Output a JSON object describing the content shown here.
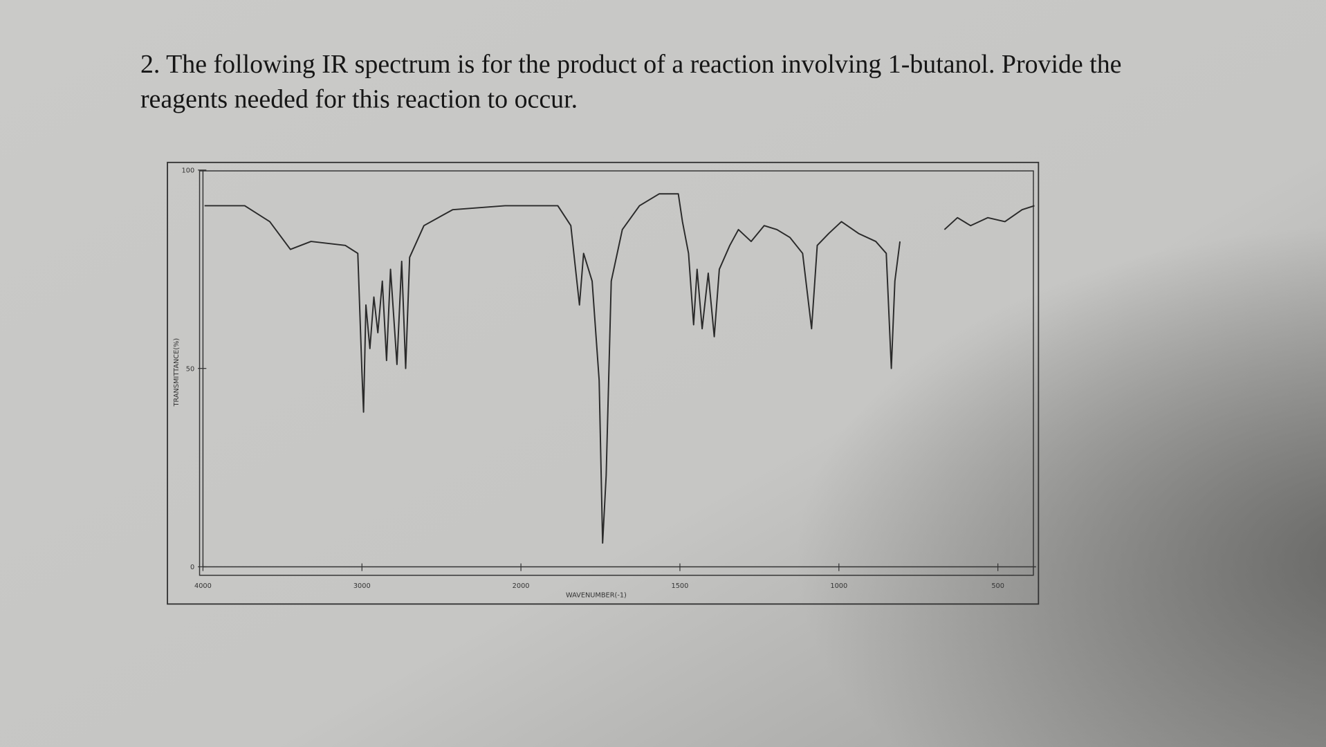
{
  "question": {
    "lines": [
      "2.  The following IR spectrum is for the product of a reaction involving 1-butanol.  Provide the",
      "reagents needed for this reaction to occur."
    ]
  },
  "chart_data": {
    "type": "line",
    "ylabel": "TRANSMITTANCE(%)",
    "xlabel": "WAVENUMBER(-1)",
    "xlim": [
      4000,
      380
    ],
    "xticks": [
      4000,
      3000,
      2000,
      1500,
      1000,
      500
    ],
    "ylim": [
      0,
      100
    ],
    "yticks": [
      100,
      50,
      0
    ],
    "color": "#2a2a2a",
    "x": [
      3990,
      3737,
      3580,
      3450,
      3320,
      3105,
      3026,
      3000,
      2990,
      2975,
      2950,
      2925,
      2900,
      2872,
      2845,
      2820,
      2780,
      2750,
      2725,
      2700,
      2610,
      2430,
      2100,
      1884,
      1843,
      1816,
      1803,
      1776,
      1754,
      1743,
      1732,
      1716,
      1681,
      1627,
      1565,
      1505,
      1492,
      1473,
      1457,
      1446,
      1430,
      1411,
      1392,
      1376,
      1343,
      1316,
      1276,
      1235,
      1195,
      1154,
      1114,
      1086,
      1068,
      1032,
      992,
      938,
      884,
      851,
      835,
      824,
      808,
      740,
      668,
      627,
      586,
      532,
      478,
      424,
      385
    ],
    "values": [
      91,
      91,
      87,
      80,
      82,
      81,
      79,
      49,
      39,
      66,
      55,
      68,
      59,
      72,
      52,
      75,
      51,
      77,
      50,
      78,
      86,
      90,
      91,
      91,
      86,
      66,
      79,
      72,
      47,
      6,
      23,
      72,
      85,
      91,
      94,
      94,
      87,
      79,
      61,
      75,
      60,
      74,
      58,
      75,
      81,
      85,
      82,
      86,
      85,
      83,
      79,
      60,
      81,
      84,
      87,
      84,
      82,
      79,
      50,
      72,
      82,
      null,
      85,
      88,
      86,
      88,
      87,
      90,
      91
    ]
  }
}
